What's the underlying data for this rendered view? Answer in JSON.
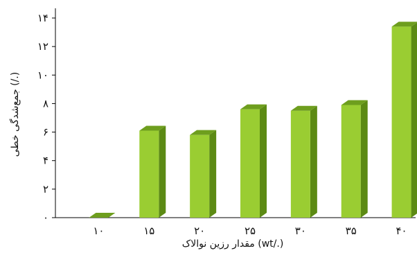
{
  "chart_data": {
    "type": "bar",
    "title": "",
    "xlabel": "مقدار رزین نوالاک (wt/.)",
    "ylabel": "جمع‌شدگی خطی (/.)",
    "categories": [
      "۱۰",
      "۱۵",
      "۲۰",
      "۲۵",
      "۳۰",
      "۳۵",
      "۴۰"
    ],
    "values": [
      0,
      6.1,
      5.8,
      7.6,
      7.5,
      7.9,
      13.4
    ],
    "ylim": [
      0,
      14
    ],
    "yticks": [
      0,
      2,
      4,
      6,
      8,
      10,
      12,
      14
    ],
    "ytick_labels": [
      "۰",
      "۲",
      "۴",
      "۶",
      "۸",
      "۱۰",
      "۱۲",
      "۱۴"
    ],
    "grid": false,
    "legend": "none",
    "colors": {
      "bar_front": "#9ACD32",
      "bar_side": "#5C8A14",
      "bar_top": "#6E9E1E",
      "axis": "#000000"
    }
  }
}
